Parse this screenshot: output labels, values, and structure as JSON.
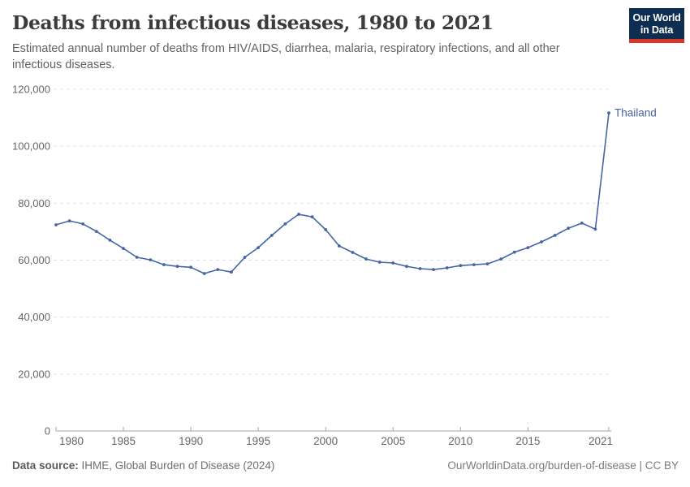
{
  "header": {
    "title": "Deaths from infectious diseases, 1980 to 2021",
    "subtitle": "Estimated annual number of deaths from HIV/AIDS, diarrhea, malaria, respiratory infections, and all other infectious diseases.",
    "logo": {
      "line1": "Our World",
      "line2": "in Data",
      "bg_color": "#0d2e51",
      "accent_color": "#d8352b"
    }
  },
  "chart_data": {
    "type": "line",
    "title": "Deaths from infectious diseases, 1980 to 2021",
    "xlabel": "",
    "ylabel": "",
    "xlim": [
      1980,
      2021
    ],
    "ylim": [
      0,
      120000
    ],
    "x_ticks": [
      1980,
      1985,
      1990,
      1995,
      2000,
      2005,
      2010,
      2015,
      2021
    ],
    "y_ticks": [
      0,
      20000,
      40000,
      60000,
      80000,
      100000,
      120000
    ],
    "grid": "horizontal-dashed",
    "legend_position": "end-of-line-label",
    "colors": {
      "line": "#4665a4",
      "gridline": "#e3e3e3",
      "axis": "#a5a5a5",
      "tick_label": "#666666"
    },
    "series": [
      {
        "name": "Thailand",
        "color": "#4665a4",
        "x": [
          1980,
          1981,
          1982,
          1983,
          1984,
          1985,
          1986,
          1987,
          1988,
          1989,
          1990,
          1991,
          1992,
          1993,
          1994,
          1995,
          1996,
          1997,
          1998,
          1999,
          2000,
          2001,
          2002,
          2003,
          2004,
          2005,
          2006,
          2007,
          2008,
          2009,
          2010,
          2011,
          2012,
          2013,
          2014,
          2015,
          2016,
          2017,
          2018,
          2019,
          2020,
          2021
        ],
        "values": [
          72400,
          73800,
          72700,
          70100,
          67000,
          64100,
          61000,
          60100,
          58400,
          57800,
          57500,
          55300,
          56700,
          55800,
          61000,
          64400,
          68700,
          72700,
          76100,
          75200,
          70700,
          65000,
          62700,
          60400,
          59300,
          59000,
          57800,
          57000,
          56700,
          57300,
          58100,
          58400,
          58700,
          60400,
          62800,
          64400,
          66400,
          68700,
          71200,
          73000,
          70900,
          111700
        ]
      }
    ]
  },
  "footer": {
    "source_label": "Data source:",
    "source_text": " IHME, Global Burden of Disease (2024)",
    "credit": "OurWorldinData.org/burden-of-disease | CC BY"
  }
}
